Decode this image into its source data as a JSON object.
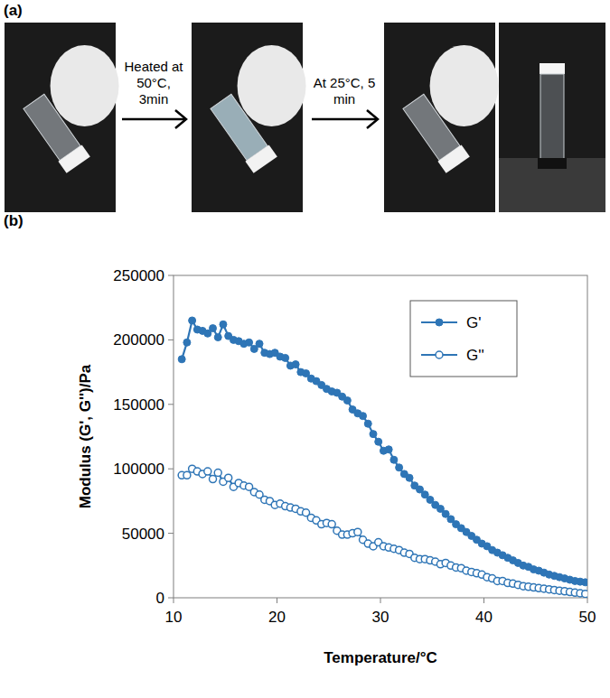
{
  "panel_labels": [
    "(a)",
    "(b)"
  ],
  "photo_steps": [
    "Heated at 50°C, 3min",
    "At 25°C, 5 min"
  ],
  "chart_data": {
    "type": "line",
    "x_label": "Temperature/°C",
    "y_label": "Modulus (G', G'')/Pa",
    "xlim": [
      10,
      50
    ],
    "xticks": [
      10,
      20,
      30,
      40,
      50
    ],
    "ylim": [
      0,
      250000
    ],
    "yticks": [
      0,
      50000,
      100000,
      150000,
      200000,
      250000
    ],
    "grid": false,
    "legend": "top-right",
    "x": [
      10.8,
      11.3,
      11.8,
      12.3,
      12.8,
      13.3,
      13.8,
      14.3,
      14.8,
      15.3,
      15.8,
      16.3,
      16.8,
      17.3,
      17.8,
      18.3,
      18.8,
      19.3,
      19.8,
      20.3,
      20.8,
      21.3,
      21.8,
      22.3,
      22.8,
      23.3,
      23.8,
      24.3,
      24.8,
      25.3,
      25.8,
      26.3,
      26.8,
      27.3,
      27.8,
      28.3,
      28.8,
      29.3,
      29.8,
      30.3,
      30.8,
      31.3,
      31.8,
      32.3,
      32.8,
      33.3,
      33.8,
      34.3,
      34.8,
      35.3,
      35.8,
      36.3,
      36.8,
      37.3,
      37.8,
      38.3,
      38.8,
      39.3,
      39.8,
      40.3,
      40.8,
      41.3,
      41.8,
      42.3,
      42.8,
      43.3,
      43.8,
      44.3,
      44.8,
      45.3,
      45.8,
      46.3,
      46.8,
      47.3,
      47.8,
      48.3,
      48.8,
      49.3,
      49.8
    ],
    "series": [
      {
        "name": "G'",
        "color": "#2e75b6",
        "marker": "circle",
        "line_style": "solid",
        "values": [
          185000,
          198000,
          215000,
          208000,
          207000,
          205000,
          209000,
          202000,
          212000,
          203000,
          200000,
          199000,
          197000,
          198000,
          193000,
          197000,
          190000,
          189000,
          190000,
          187000,
          186000,
          180000,
          181000,
          175000,
          174000,
          170000,
          168000,
          165000,
          162000,
          160000,
          159000,
          156000,
          153000,
          146000,
          143000,
          141000,
          135000,
          127000,
          121000,
          114000,
          115000,
          107000,
          101000,
          96000,
          93000,
          87000,
          84000,
          80000,
          76000,
          72000,
          69000,
          65000,
          61000,
          57000,
          54000,
          51000,
          48000,
          45000,
          42000,
          40000,
          37000,
          35000,
          33000,
          31000,
          29000,
          27000,
          25000,
          24000,
          22000,
          21000,
          19500,
          18000,
          17000,
          16000,
          15000,
          14000,
          13000,
          12500,
          12000
        ]
      },
      {
        "name": "G''",
        "color": "#2e75b6",
        "marker": "open-circle",
        "line_style": "solid",
        "values": [
          95000,
          95000,
          100000,
          98000,
          96000,
          98000,
          92000,
          97000,
          90000,
          93000,
          86000,
          89000,
          87000,
          86000,
          82000,
          80000,
          76000,
          75000,
          72000,
          73000,
          71000,
          70000,
          69000,
          67000,
          66000,
          62000,
          60000,
          57000,
          58000,
          57000,
          52000,
          49000,
          49000,
          50000,
          51000,
          45000,
          42000,
          40000,
          43000,
          40000,
          39000,
          38000,
          37000,
          35000,
          34000,
          31000,
          30000,
          30000,
          29000,
          28000,
          26000,
          27000,
          25000,
          23500,
          23000,
          21000,
          20000,
          19000,
          18000,
          16000,
          15000,
          13000,
          13000,
          11500,
          11000,
          10000,
          9000,
          8500,
          8000,
          7500,
          7000,
          6500,
          6000,
          5500,
          5000,
          4500,
          4000,
          3500,
          3000
        ]
      }
    ]
  }
}
